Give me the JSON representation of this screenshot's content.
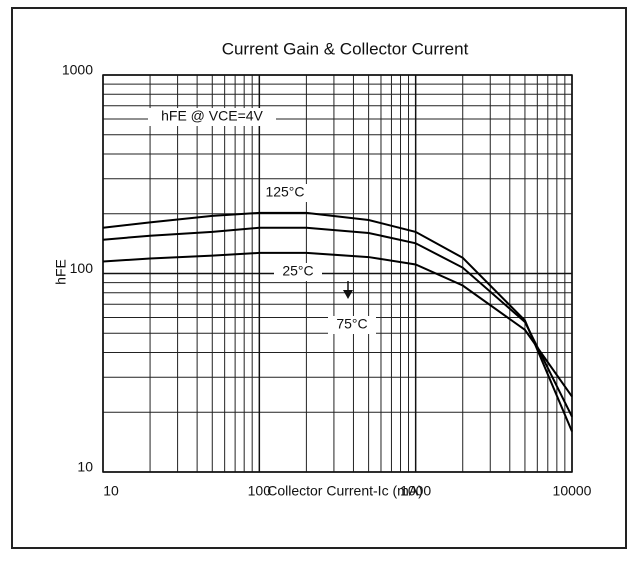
{
  "chart_data": {
    "type": "line",
    "title": "Current Gain & Collector Current",
    "xlabel": "Collector Current-Ic (mA)",
    "ylabel": "hFE",
    "annotations": [
      "hFE @ VCE=4V"
    ],
    "x": [
      10,
      20,
      50,
      100,
      200,
      500,
      1000,
      2000,
      5000,
      10000
    ],
    "series": [
      {
        "name": "125°C",
        "color": "#000000",
        "values": [
          170,
          181,
          195,
          202,
          202,
          186,
          162,
          120,
          58,
          16
        ]
      },
      {
        "name": "75°C",
        "color": "#000000",
        "values": [
          148,
          155,
          162,
          170,
          170,
          160,
          142,
          107,
          57,
          19
        ]
      },
      {
        "name": "25°C",
        "color": "#000000",
        "values": [
          115,
          119,
          123,
          127,
          127,
          121,
          111,
          87,
          52,
          24
        ]
      }
    ],
    "xlim": [
      10,
      10000
    ],
    "ylim": [
      10,
      1000
    ],
    "xticks": [
      10,
      100,
      1000,
      10000
    ],
    "yticks": [
      10,
      100,
      1000
    ],
    "xscale": "log",
    "yscale": "log",
    "grid": true,
    "minor_grid": true
  }
}
